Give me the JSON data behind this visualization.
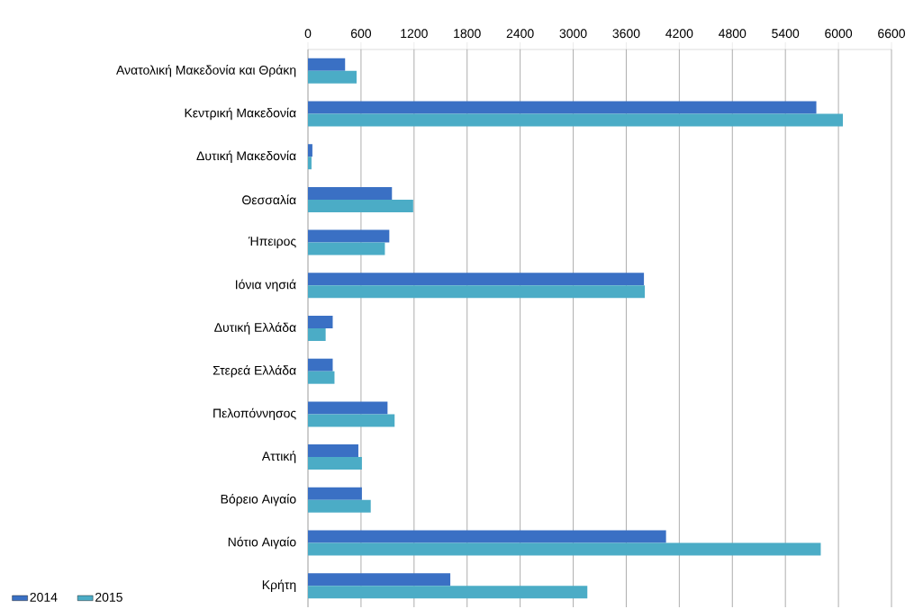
{
  "chart_data": {
    "type": "bar",
    "orientation": "horizontal",
    "categories": [
      "Ανατολική Μακεδονία και Θράκη",
      "Κεντρική Μακεδονία",
      "Δυτική Μακεδονία",
      "Θεσσαλία",
      "Ήπειρος",
      "Ιόνια νησιά",
      "Δυτική Ελλάδα",
      "Στερεά Ελλάδα",
      "Πελοπόννησος",
      "Αττική",
      "Βόρειο Αιγαίο",
      "Νότιο Αιγαίο",
      "Κρήτη"
    ],
    "series": [
      {
        "name": "2014",
        "color": "#3a70c4",
        "values": [
          420,
          5750,
          50,
          950,
          920,
          3800,
          280,
          280,
          900,
          570,
          610,
          4050,
          1610
        ]
      },
      {
        "name": "2015",
        "color": "#4bacc6",
        "values": [
          550,
          6050,
          40,
          1190,
          870,
          3810,
          200,
          300,
          980,
          610,
          710,
          5800,
          3160
        ]
      }
    ],
    "xlim": [
      0,
      6600
    ],
    "xticks": [
      0,
      600,
      1200,
      1800,
      2400,
      3000,
      3600,
      4200,
      4800,
      5400,
      6000,
      6600
    ],
    "grid": "x",
    "legend": "bottom left"
  }
}
